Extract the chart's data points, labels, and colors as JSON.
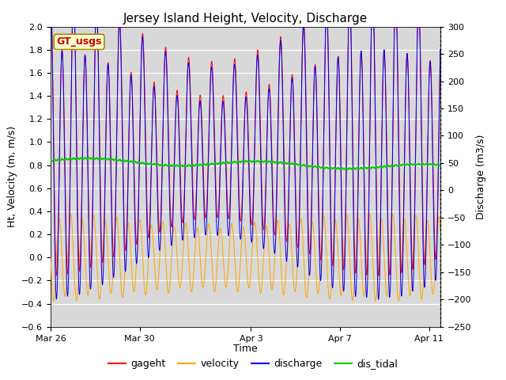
{
  "title": "Jersey Island Height, Velocity, Discharge",
  "xlabel": "Time",
  "ylabel_left": "Ht, Velocity (m, m/s)",
  "ylabel_right": "Discharge (m3/s)",
  "ylim_left": [
    -0.6,
    2.0
  ],
  "ylim_right": [
    -250,
    300
  ],
  "xtick_labels": [
    "Mar 26",
    "Mar 30",
    "Apr 3",
    "Apr 7",
    "Apr 11"
  ],
  "xtick_positions": [
    0,
    4,
    9,
    13,
    17
  ],
  "annotation_text": "GT_usgs",
  "annotation_color": "#cc0000",
  "annotation_bg": "#ffffcc",
  "annotation_border": "#aa8800",
  "background_color": "#ffffff",
  "plot_bg_color": "#d8d8d8",
  "title_fontsize": 11,
  "axis_fontsize": 9,
  "legend_fontsize": 9,
  "grid_color": "#ffffff",
  "tidal_period_hours": 12.4,
  "n_points": 3000,
  "duration_days": 17.5
}
